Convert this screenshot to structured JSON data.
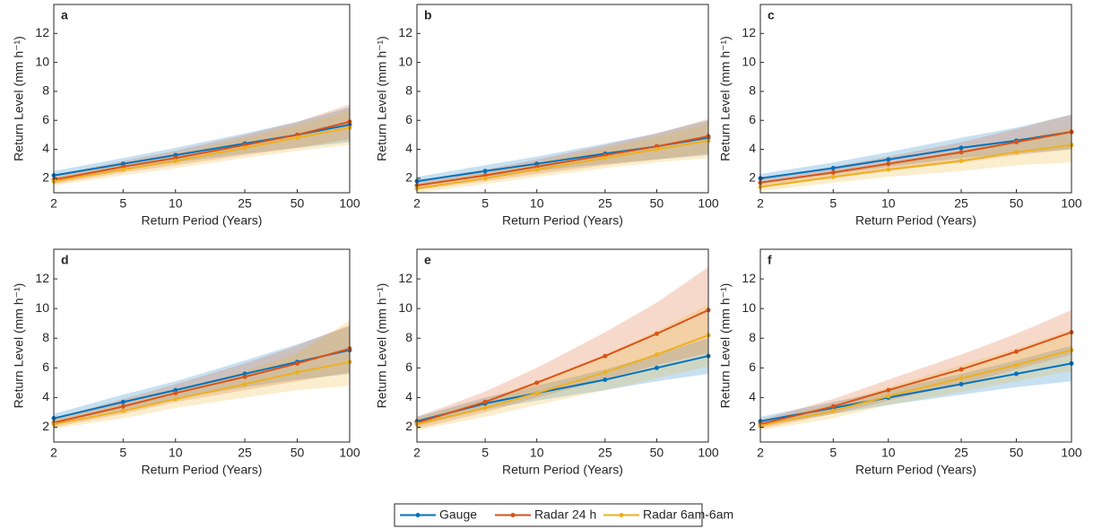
{
  "chart_data": [
    {
      "type": "line",
      "panel": "a",
      "xlabel": "Return Period (Years)",
      "ylabel": "Return Level (mm h⁻¹)",
      "xscale": "log",
      "x": [
        2,
        5,
        10,
        25,
        50,
        100
      ],
      "xlim": [
        2,
        100
      ],
      "xticks": [
        2,
        5,
        10,
        25,
        50,
        100
      ],
      "ylim": [
        1,
        14
      ],
      "yticks": [
        2,
        4,
        6,
        8,
        10,
        12
      ],
      "series": [
        {
          "name": "Gauge",
          "color": "#0072bd",
          "values": [
            2.2,
            3.0,
            3.6,
            4.4,
            5.0,
            5.7
          ],
          "lower": [
            1.9,
            2.6,
            3.1,
            3.7,
            4.1,
            4.5
          ],
          "upper": [
            2.5,
            3.4,
            4.1,
            5.1,
            5.9,
            6.9
          ]
        },
        {
          "name": "Radar 24 h",
          "color": "#d95319",
          "values": [
            1.9,
            2.8,
            3.4,
            4.3,
            5.0,
            5.9
          ],
          "lower": [
            1.6,
            2.4,
            2.9,
            3.6,
            4.1,
            4.7
          ],
          "upper": [
            2.2,
            3.2,
            3.9,
            5.0,
            5.9,
            7.1
          ]
        },
        {
          "name": "Radar 6am-6am",
          "color": "#edb120",
          "values": [
            1.8,
            2.6,
            3.2,
            4.1,
            4.8,
            5.5
          ],
          "lower": [
            1.5,
            2.2,
            2.7,
            3.4,
            3.9,
            4.3
          ],
          "upper": [
            2.1,
            3.0,
            3.7,
            4.8,
            5.7,
            6.7
          ]
        }
      ]
    },
    {
      "type": "line",
      "panel": "b",
      "xlabel": "Return Period (Years)",
      "ylabel": "Return Level (mm h⁻¹)",
      "xscale": "log",
      "x": [
        2,
        5,
        10,
        25,
        50,
        100
      ],
      "xlim": [
        2,
        100
      ],
      "xticks": [
        2,
        5,
        10,
        25,
        50,
        100
      ],
      "ylim": [
        1,
        14
      ],
      "yticks": [
        2,
        4,
        6,
        8,
        10,
        12
      ],
      "series": [
        {
          "color": "#0072bd",
          "values": [
            1.8,
            2.5,
            3.0,
            3.7,
            4.2,
            4.8
          ],
          "lower": [
            1.5,
            2.1,
            2.5,
            3.0,
            3.3,
            3.6
          ],
          "upper": [
            2.1,
            2.9,
            3.5,
            4.4,
            5.1,
            6.0
          ]
        },
        {
          "color": "#d95319",
          "values": [
            1.5,
            2.2,
            2.8,
            3.6,
            4.2,
            4.9
          ],
          "lower": [
            1.2,
            1.8,
            2.3,
            2.9,
            3.3,
            3.7
          ],
          "upper": [
            1.8,
            2.6,
            3.3,
            4.3,
            5.1,
            6.1
          ]
        },
        {
          "color": "#edb120",
          "values": [
            1.3,
            2.0,
            2.6,
            3.4,
            4.0,
            4.6
          ],
          "lower": [
            1.0,
            1.6,
            2.1,
            2.7,
            3.1,
            3.4
          ],
          "upper": [
            1.6,
            2.4,
            3.1,
            4.1,
            4.9,
            5.8
          ]
        }
      ]
    },
    {
      "type": "line",
      "panel": "c",
      "xlabel": "Return Period (Years)",
      "ylabel": "Return Level (mm h⁻¹)",
      "xscale": "log",
      "x": [
        2,
        5,
        10,
        25,
        50,
        100
      ],
      "xlim": [
        2,
        100
      ],
      "xticks": [
        2,
        5,
        10,
        25,
        50,
        100
      ],
      "ylim": [
        1,
        14
      ],
      "yticks": [
        2,
        4,
        6,
        8,
        10,
        12
      ],
      "series": [
        {
          "color": "#0072bd",
          "values": [
            2.0,
            2.7,
            3.3,
            4.1,
            4.6,
            5.2
          ],
          "lower": [
            1.7,
            2.3,
            2.8,
            3.4,
            3.7,
            4.0
          ],
          "upper": [
            2.3,
            3.1,
            3.8,
            4.8,
            5.5,
            6.4
          ]
        },
        {
          "color": "#d95319",
          "values": [
            1.7,
            2.4,
            3.0,
            3.8,
            4.5,
            5.2
          ],
          "lower": [
            1.4,
            2.0,
            2.5,
            3.1,
            3.6,
            4.0
          ],
          "upper": [
            2.0,
            2.8,
            3.5,
            4.5,
            5.4,
            6.4
          ]
        },
        {
          "color": "#edb120",
          "values": [
            1.4,
            2.1,
            2.6,
            3.2,
            3.8,
            4.3
          ],
          "lower": [
            1.1,
            1.7,
            2.1,
            2.5,
            2.9,
            3.1
          ],
          "upper": [
            1.7,
            2.5,
            3.1,
            3.9,
            4.7,
            5.5
          ]
        }
      ]
    },
    {
      "type": "line",
      "panel": "d",
      "xlabel": "Return Period (Years)",
      "ylabel": "Return Level (mm h⁻¹)",
      "xscale": "log",
      "x": [
        2,
        5,
        10,
        25,
        50,
        100
      ],
      "xlim": [
        2,
        100
      ],
      "xticks": [
        2,
        5,
        10,
        25,
        50,
        100
      ],
      "ylim": [
        1,
        14
      ],
      "yticks": [
        2,
        4,
        6,
        8,
        10,
        12
      ],
      "series": [
        {
          "color": "#0072bd",
          "values": [
            2.6,
            3.7,
            4.5,
            5.6,
            6.4,
            7.2
          ],
          "lower": [
            2.3,
            3.2,
            3.9,
            4.7,
            5.2,
            5.6
          ],
          "upper": [
            2.9,
            4.2,
            5.1,
            6.5,
            7.6,
            8.8
          ]
        },
        {
          "color": "#d95319",
          "values": [
            2.3,
            3.4,
            4.3,
            5.4,
            6.3,
            7.3
          ],
          "lower": [
            2.0,
            2.9,
            3.7,
            4.5,
            5.1,
            5.7
          ],
          "upper": [
            2.6,
            3.9,
            4.9,
            6.3,
            7.5,
            8.9
          ]
        },
        {
          "color": "#edb120",
          "values": [
            2.2,
            3.1,
            3.9,
            4.9,
            5.7,
            6.4
          ],
          "lower": [
            1.9,
            2.6,
            3.3,
            4.0,
            4.5,
            4.8
          ],
          "upper": [
            2.5,
            3.6,
            4.5,
            5.8,
            7.0,
            9.2
          ]
        }
      ]
    },
    {
      "type": "line",
      "panel": "e",
      "xlabel": "Return Period (Years)",
      "ylabel": "Return Level (mm h⁻¹)",
      "xscale": "log",
      "x": [
        2,
        5,
        10,
        25,
        50,
        100
      ],
      "xlim": [
        2,
        100
      ],
      "xticks": [
        2,
        5,
        10,
        25,
        50,
        100
      ],
      "ylim": [
        1,
        14
      ],
      "yticks": [
        2,
        4,
        6,
        8,
        10,
        12
      ],
      "series": [
        {
          "color": "#0072bd",
          "values": [
            2.4,
            3.6,
            4.3,
            5.2,
            6.0,
            6.8
          ],
          "lower": [
            2.1,
            3.2,
            3.8,
            4.5,
            5.1,
            5.6
          ],
          "upper": [
            2.7,
            4.0,
            4.8,
            5.9,
            6.9,
            8.0
          ]
        },
        {
          "color": "#d95319",
          "values": [
            2.3,
            3.7,
            5.0,
            6.8,
            8.3,
            9.9
          ],
          "lower": [
            1.9,
            3.0,
            4.0,
            5.2,
            6.2,
            7.0
          ],
          "upper": [
            2.7,
            4.4,
            6.0,
            8.4,
            10.4,
            12.8
          ]
        },
        {
          "color": "#edb120",
          "values": [
            2.2,
            3.3,
            4.3,
            5.7,
            6.9,
            8.2
          ],
          "lower": [
            1.8,
            2.7,
            3.5,
            4.5,
            5.3,
            6.1
          ],
          "upper": [
            2.6,
            3.9,
            5.1,
            6.9,
            8.5,
            10.3
          ]
        }
      ]
    },
    {
      "type": "line",
      "panel": "f",
      "xlabel": "Return Period (Years)",
      "ylabel": "Return Level (mm h⁻¹)",
      "xscale": "log",
      "x": [
        2,
        5,
        10,
        25,
        50,
        100
      ],
      "xlim": [
        2,
        100
      ],
      "xticks": [
        2,
        5,
        10,
        25,
        50,
        100
      ],
      "ylim": [
        1,
        14
      ],
      "yticks": [
        2,
        4,
        6,
        8,
        10,
        12
      ],
      "series": [
        {
          "color": "#0072bd",
          "values": [
            2.4,
            3.3,
            4.0,
            4.9,
            5.6,
            6.3
          ],
          "lower": [
            2.1,
            2.9,
            3.5,
            4.2,
            4.7,
            5.1
          ],
          "upper": [
            2.7,
            3.7,
            4.5,
            5.6,
            6.5,
            7.5
          ]
        },
        {
          "color": "#d95319",
          "values": [
            2.2,
            3.4,
            4.5,
            5.9,
            7.1,
            8.4
          ],
          "lower": [
            1.9,
            2.9,
            3.8,
            4.9,
            5.9,
            6.9
          ],
          "upper": [
            2.5,
            3.9,
            5.2,
            6.9,
            8.3,
            9.9
          ]
        },
        {
          "color": "#edb120",
          "values": [
            2.1,
            3.1,
            4.1,
            5.3,
            6.2,
            7.2
          ],
          "lower": [
            1.8,
            2.6,
            3.5,
            4.4,
            5.1,
            5.8
          ],
          "upper": [
            2.4,
            3.6,
            4.7,
            6.2,
            7.3,
            8.6
          ]
        }
      ]
    }
  ]
}
